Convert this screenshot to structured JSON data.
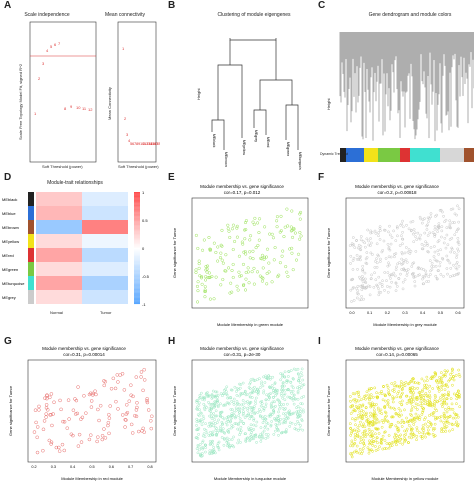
{
  "labels": {
    "A": "A",
    "B": "B",
    "C": "C",
    "D": "D",
    "E": "E",
    "F": "F",
    "G": "G",
    "H": "H",
    "I": "I"
  },
  "panelA": {
    "left_title": "Scale independence",
    "right_title": "Mean connectivity",
    "left_ylabel": "Scale Free Topology Model Fit, signed R^2",
    "right_ylabel": "Mean Connectivity",
    "xlabel": "Soft Threshold (power)",
    "ticks_x": [
      "0",
      "5",
      "10",
      "15",
      "20",
      "25",
      "30"
    ],
    "left_ticks_y": [
      "0.2",
      "0.4",
      "0.6",
      "0.8"
    ],
    "right_ticks_y": [
      "0",
      "50",
      "100",
      "150"
    ]
  },
  "panelB": {
    "title": "Clustering of module eigengenes",
    "ylabel": "Height",
    "leaves": [
      "MEblack",
      "MEbrown",
      "MEyellow",
      "MEgrey",
      "MEred",
      "MEgreen",
      "MEturquoise"
    ]
  },
  "panelC": {
    "title": "Gene dendrogram and module colors",
    "ylabel": "Height",
    "colorbar_label": "Dynamic Tree Cut"
  },
  "panelD": {
    "title": "Module-trait relationships",
    "rows": [
      "MEblack",
      "MEblue",
      "MEbrown",
      "MEyellow",
      "MEred",
      "MEgreen",
      "MEturquoise",
      "MEgrey"
    ],
    "cols": [
      "Normal",
      "Tumor"
    ],
    "colorbar_ticks": [
      "1",
      "0.5",
      "0",
      "-0.5",
      "-1"
    ]
  },
  "panelE": {
    "title": "Module membership vs. gene significance",
    "subtitle": "cor=0.17, p=0.012",
    "xlabel": "Module Membership in green module",
    "ylabel": "Gene significance for Tumor",
    "color": "#9be25a"
  },
  "panelF": {
    "title": "Module membership vs. gene significance",
    "subtitle": "cor=0.2, p=0.00818",
    "xlabel": "Module Membership in grey module",
    "ylabel": "Gene significance for Tumor",
    "color": "#c8c8c8",
    "xticks": [
      "0.0",
      "0.1",
      "0.2",
      "0.3",
      "0.4",
      "0.5",
      "0.6"
    ]
  },
  "panelG": {
    "title": "Module membership vs. gene significance",
    "subtitle": "cor=0.31, p=0.00014",
    "xlabel": "Module Membership in red module",
    "ylabel": "Gene significance for Tumor",
    "color": "#e8706e",
    "xticks": [
      "0.2",
      "0.3",
      "0.4",
      "0.5",
      "0.6",
      "0.7",
      "0.8"
    ]
  },
  "panelH": {
    "title": "Module membership vs. gene significance",
    "subtitle": "cor=0.31, p=2e-30",
    "xlabel": "Module Membership in turquoise module",
    "ylabel": "Gene significance for Tumor",
    "color": "#9ee8c4"
  },
  "panelI": {
    "title": "Module membership vs. gene significance",
    "subtitle": "cor=0.14, p=0.00065",
    "xlabel": "Module Membership in yellow module",
    "ylabel": "Gene significance for Tumor",
    "color": "#e2e21a"
  }
}
